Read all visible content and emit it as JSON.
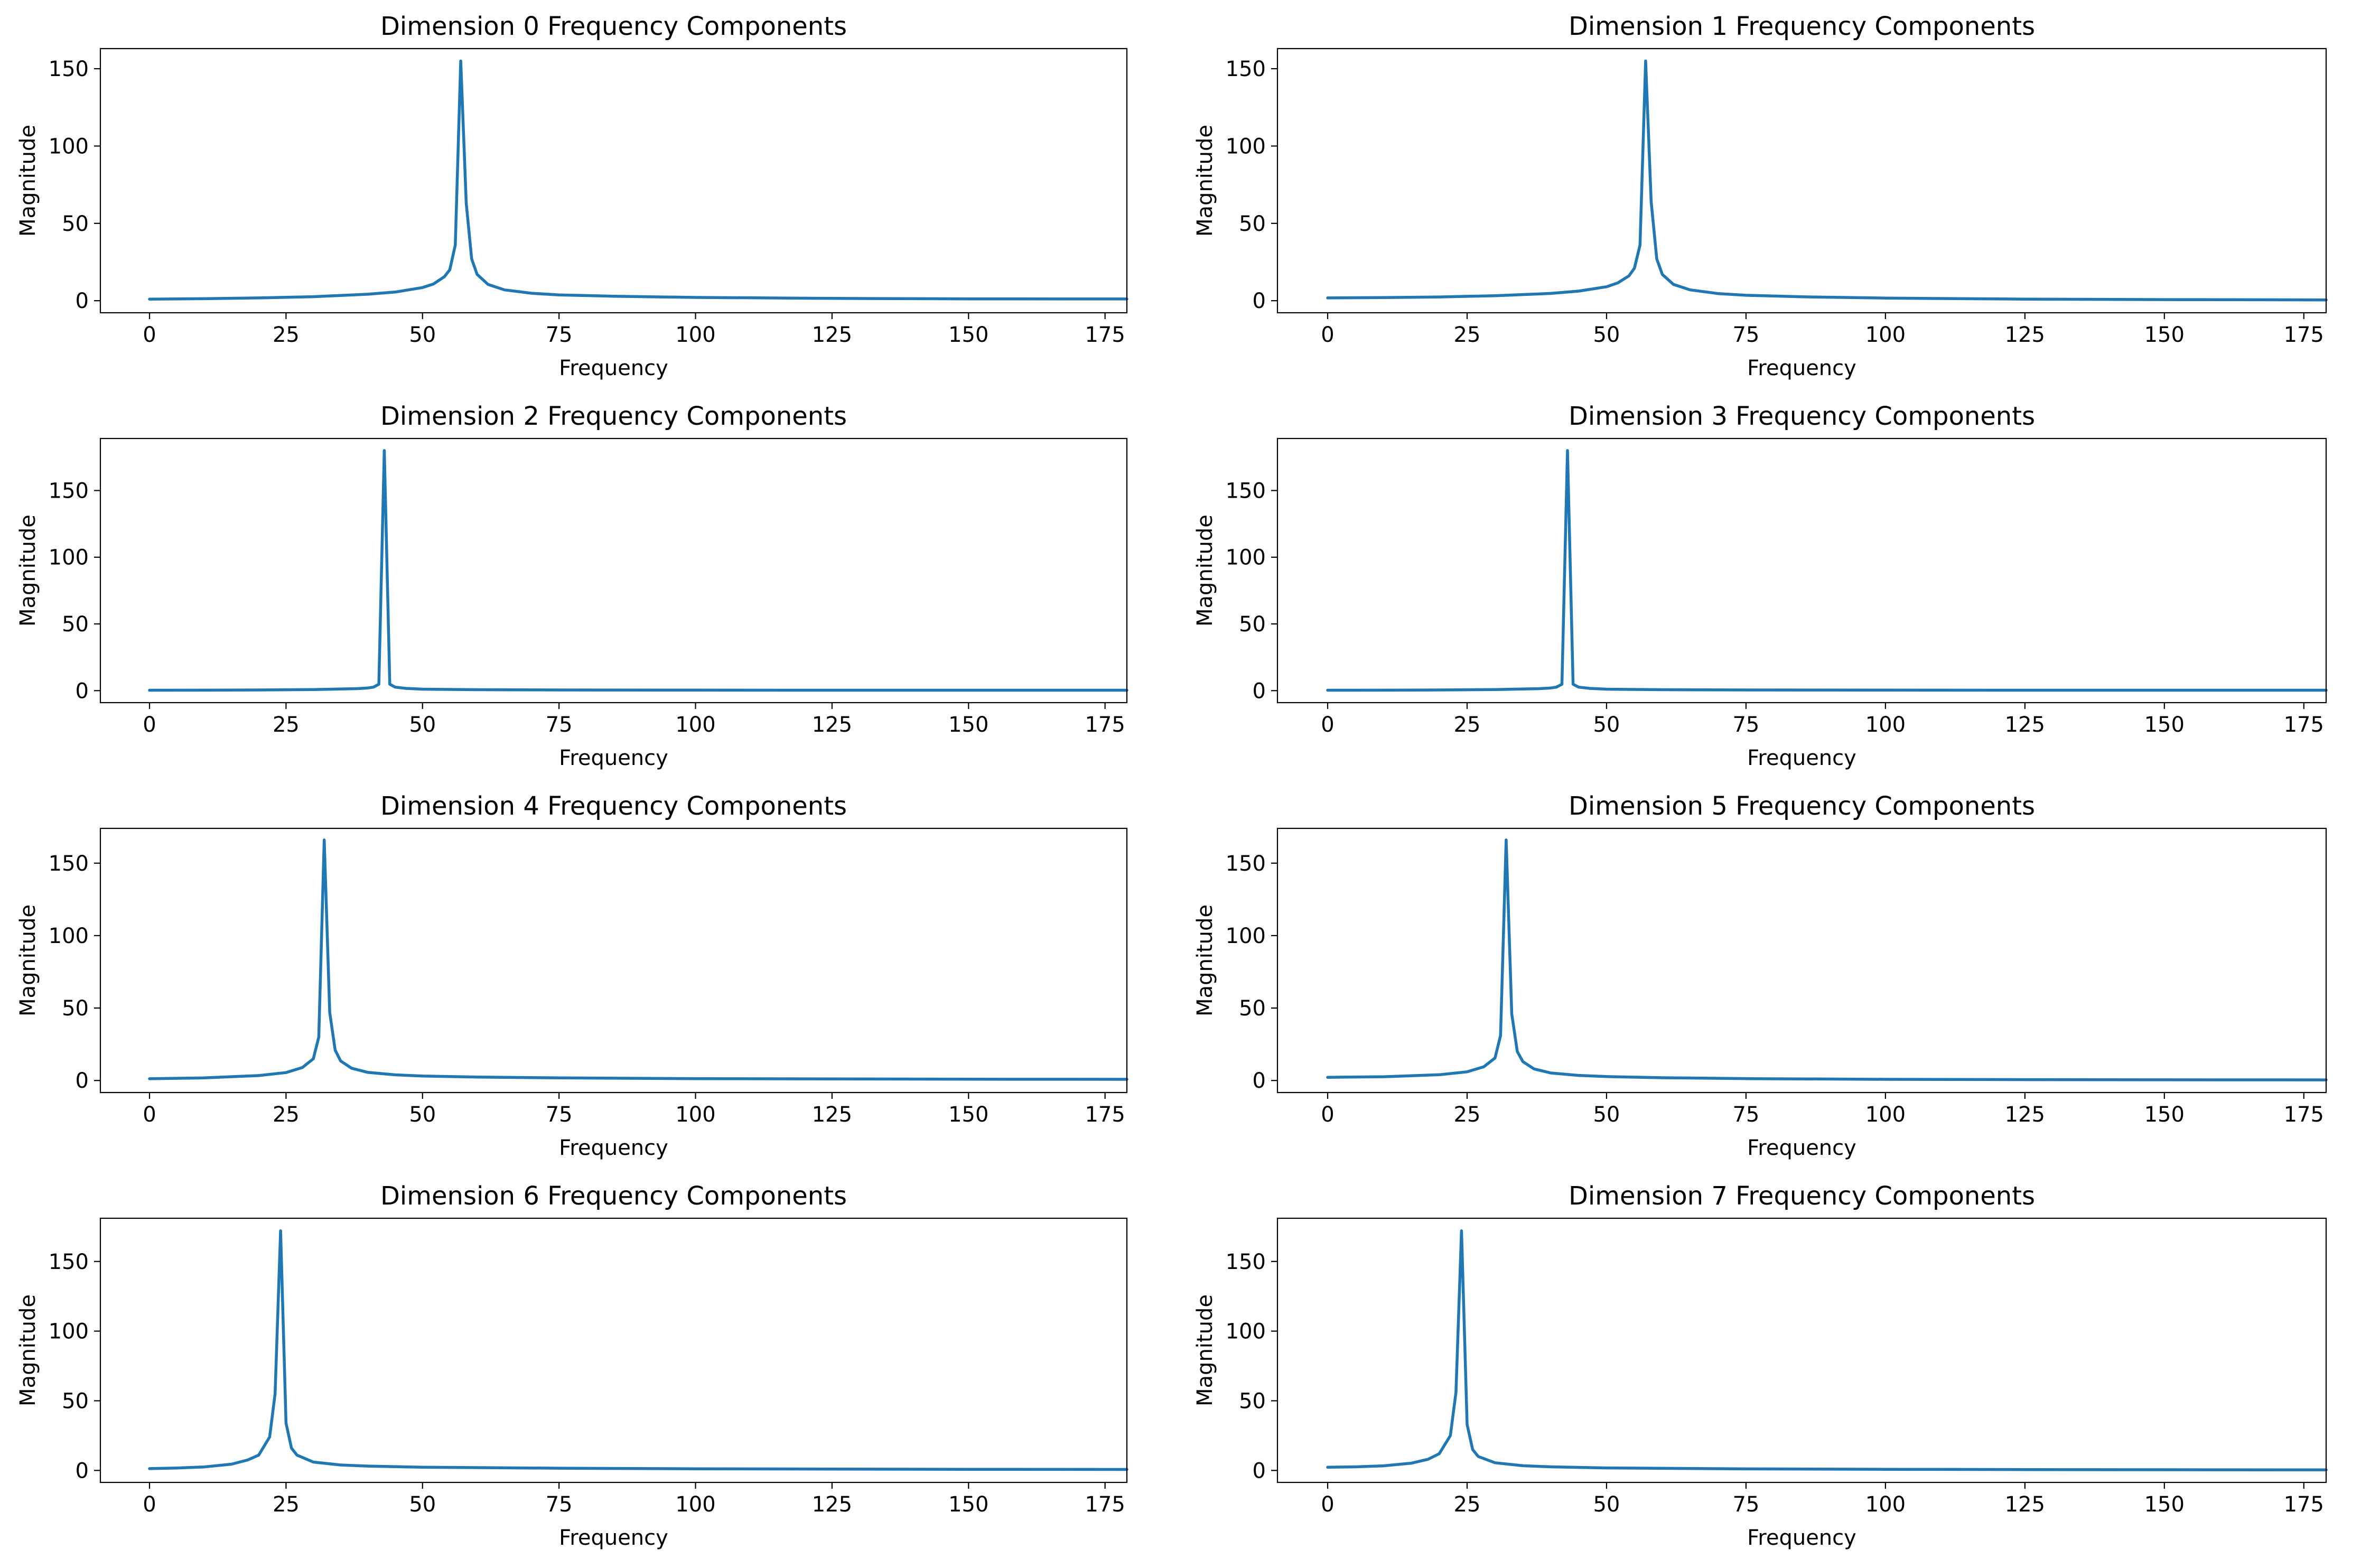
{
  "theme": {
    "line_color": "#1f77b4",
    "frame_color": "#000000",
    "background": "#ffffff"
  },
  "chart_data": [
    {
      "type": "line",
      "title": "Dimension 0 Frequency Components",
      "xlabel": "Frequency",
      "ylabel": "Magnitude",
      "xlim": [
        -9,
        179
      ],
      "ylim": [
        -7.8,
        163
      ],
      "xticks": [
        0,
        25,
        50,
        75,
        100,
        125,
        150,
        175
      ],
      "yticks": [
        0,
        50,
        100,
        150
      ],
      "series": [
        {
          "name": "Dimension 0",
          "x": [
            0,
            10,
            20,
            30,
            40,
            45,
            50,
            52,
            54,
            55,
            56,
            57,
            58,
            59,
            60,
            62,
            65,
            70,
            75,
            85,
            100,
            125,
            150,
            179
          ],
          "values": [
            1.0,
            1.3,
            1.8,
            2.6,
            4.2,
            5.6,
            8.5,
            10.8,
            15.5,
            20,
            36,
            155,
            63,
            27,
            17,
            10.5,
            7.0,
            4.8,
            3.7,
            2.9,
            2.1,
            1.5,
            1.2,
            1.1
          ]
        }
      ]
    },
    {
      "type": "line",
      "title": "Dimension 1 Frequency Components",
      "xlabel": "Frequency",
      "ylabel": "Magnitude",
      "xlim": [
        -9,
        179
      ],
      "ylim": [
        -7.8,
        163
      ],
      "xticks": [
        0,
        25,
        50,
        75,
        100,
        125,
        150,
        175
      ],
      "yticks": [
        0,
        50,
        100,
        150
      ],
      "series": [
        {
          "name": "Dimension 1",
          "x": [
            0,
            10,
            20,
            30,
            40,
            45,
            50,
            52,
            54,
            55,
            56,
            57,
            58,
            59,
            60,
            62,
            65,
            70,
            75,
            85,
            100,
            125,
            150,
            179
          ],
          "values": [
            1.8,
            2.0,
            2.4,
            3.2,
            4.7,
            6.2,
            9.0,
            11.5,
            16,
            21,
            36,
            155,
            64,
            27,
            17,
            10.5,
            7.0,
            4.6,
            3.5,
            2.5,
            1.7,
            1.0,
            0.7,
            0.5
          ]
        }
      ]
    },
    {
      "type": "line",
      "title": "Dimension 2 Frequency Components",
      "xlabel": "Frequency",
      "ylabel": "Magnitude",
      "xlim": [
        -9,
        179
      ],
      "ylim": [
        -9,
        189
      ],
      "xticks": [
        0,
        25,
        50,
        75,
        100,
        125,
        150,
        175
      ],
      "yticks": [
        0,
        50,
        100,
        150
      ],
      "series": [
        {
          "name": "Dimension 2",
          "x": [
            0,
            10,
            20,
            30,
            38,
            40,
            41,
            42,
            43,
            44,
            45,
            47,
            50,
            60,
            75,
            100,
            125,
            150,
            179
          ],
          "values": [
            0.3,
            0.35,
            0.5,
            0.8,
            1.5,
            2.0,
            2.6,
            4.8,
            180,
            4.8,
            2.6,
            1.7,
            1.1,
            0.7,
            0.5,
            0.4,
            0.3,
            0.3,
            0.3
          ]
        }
      ]
    },
    {
      "type": "line",
      "title": "Dimension 3 Frequency Components",
      "xlabel": "Frequency",
      "ylabel": "Magnitude",
      "xlim": [
        -9,
        179
      ],
      "ylim": [
        -9,
        189
      ],
      "xticks": [
        0,
        25,
        50,
        75,
        100,
        125,
        150,
        175
      ],
      "yticks": [
        0,
        50,
        100,
        150
      ],
      "series": [
        {
          "name": "Dimension 3",
          "x": [
            0,
            10,
            20,
            30,
            38,
            40,
            41,
            42,
            43,
            44,
            45,
            47,
            50,
            60,
            75,
            100,
            125,
            150,
            179
          ],
          "values": [
            0.3,
            0.35,
            0.5,
            0.8,
            1.5,
            2.0,
            2.6,
            4.8,
            180,
            4.8,
            2.6,
            1.7,
            1.1,
            0.7,
            0.5,
            0.4,
            0.3,
            0.3,
            0.3
          ]
        }
      ]
    },
    {
      "type": "line",
      "title": "Dimension 4 Frequency Components",
      "xlabel": "Frequency",
      "ylabel": "Magnitude",
      "xlim": [
        -9,
        179
      ],
      "ylim": [
        -8.3,
        174
      ],
      "xticks": [
        0,
        25,
        50,
        75,
        100,
        125,
        150,
        175
      ],
      "yticks": [
        0,
        50,
        100,
        150
      ],
      "series": [
        {
          "name": "Dimension 4",
          "x": [
            0,
            10,
            20,
            25,
            28,
            30,
            31,
            32,
            33,
            34,
            35,
            37,
            40,
            45,
            50,
            60,
            75,
            100,
            125,
            150,
            179
          ],
          "values": [
            1.2,
            1.8,
            3.4,
            5.5,
            9,
            15,
            30,
            166,
            47,
            21,
            13.5,
            8.5,
            5.6,
            3.9,
            3.1,
            2.4,
            1.8,
            1.3,
            1.1,
            0.9,
            0.8
          ]
        }
      ]
    },
    {
      "type": "line",
      "title": "Dimension 5 Frequency Components",
      "xlabel": "Frequency",
      "ylabel": "Magnitude",
      "xlim": [
        -9,
        179
      ],
      "ylim": [
        -8.3,
        174
      ],
      "xticks": [
        0,
        25,
        50,
        75,
        100,
        125,
        150,
        175
      ],
      "yticks": [
        0,
        50,
        100,
        150
      ],
      "series": [
        {
          "name": "Dimension 5",
          "x": [
            0,
            10,
            20,
            25,
            28,
            30,
            31,
            32,
            33,
            34,
            35,
            37,
            40,
            45,
            50,
            60,
            75,
            100,
            125,
            150,
            179
          ],
          "values": [
            2.2,
            2.6,
            4.0,
            6.0,
            9.5,
            15.5,
            31,
            166,
            46,
            20,
            13,
            8.0,
            5.2,
            3.5,
            2.7,
            1.9,
            1.3,
            0.8,
            0.6,
            0.5,
            0.4
          ]
        }
      ]
    },
    {
      "type": "line",
      "title": "Dimension 6 Frequency Components",
      "xlabel": "Frequency",
      "ylabel": "Magnitude",
      "xlim": [
        -9,
        179
      ],
      "ylim": [
        -8.6,
        181
      ],
      "xticks": [
        0,
        25,
        50,
        75,
        100,
        125,
        150,
        175
      ],
      "yticks": [
        0,
        50,
        100,
        150
      ],
      "series": [
        {
          "name": "Dimension 6",
          "x": [
            0,
            5,
            10,
            15,
            18,
            20,
            22,
            23,
            24,
            25,
            26,
            27,
            30,
            35,
            40,
            50,
            75,
            100,
            125,
            150,
            179
          ],
          "values": [
            1.3,
            1.7,
            2.5,
            4.5,
            7.5,
            11,
            24,
            55,
            172,
            34,
            16,
            11,
            6.0,
            3.9,
            3.1,
            2.3,
            1.6,
            1.2,
            1.0,
            0.8,
            0.7
          ]
        }
      ]
    },
    {
      "type": "line",
      "title": "Dimension 7 Frequency Components",
      "xlabel": "Frequency",
      "ylabel": "Magnitude",
      "xlim": [
        -9,
        179
      ],
      "ylim": [
        -8.6,
        181
      ],
      "xticks": [
        0,
        25,
        50,
        75,
        100,
        125,
        150,
        175
      ],
      "yticks": [
        0,
        50,
        100,
        150
      ],
      "series": [
        {
          "name": "Dimension 7",
          "x": [
            0,
            5,
            10,
            15,
            18,
            20,
            22,
            23,
            24,
            25,
            26,
            27,
            30,
            35,
            40,
            50,
            75,
            100,
            125,
            150,
            179
          ],
          "values": [
            2.3,
            2.6,
            3.3,
            5.2,
            8.0,
            12,
            25,
            56,
            172,
            33,
            15,
            10,
            5.5,
            3.4,
            2.6,
            1.8,
            1.1,
            0.8,
            0.6,
            0.5,
            0.4
          ]
        }
      ]
    }
  ]
}
